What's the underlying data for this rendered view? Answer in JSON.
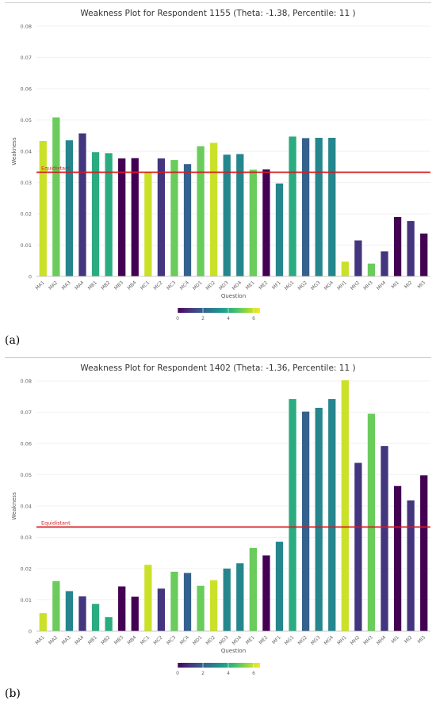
{
  "chart_data": [
    {
      "type": "bar",
      "panel_label": "(a)",
      "title": "Weakness Plot for Respondent 1155 (Theta: -1.38, Percentile: 11 )",
      "xlabel": "Question",
      "ylabel": "Weakness",
      "ylim": [
        0,
        0.08
      ],
      "yticks": [
        "0",
        "0.01",
        "0.02",
        "0.03",
        "0.04",
        "0.05",
        "0.06",
        "0.07",
        "0.08"
      ],
      "grid": true,
      "reference_line": {
        "label": "Equidistant",
        "value": 0.0333,
        "color": "#d7191c"
      },
      "colorbar": {
        "ticks": [
          "0",
          "2",
          "4",
          "6"
        ],
        "range": [
          0,
          6.5
        ]
      },
      "categories": [
        "MA1",
        "MA2",
        "MA3",
        "MA4",
        "MB1",
        "MB2",
        "MB3",
        "MB4",
        "MC1",
        "MC2",
        "MC3",
        "MC4",
        "MD1",
        "MD2",
        "MD3",
        "MD4",
        "ME1",
        "ME2",
        "MF1",
        "MG1",
        "MG2",
        "MG3",
        "MG4",
        "MH1",
        "MH2",
        "MH3",
        "MH4",
        "MI1",
        "MI2",
        "MI3"
      ],
      "values": [
        0.0433,
        0.0508,
        0.0435,
        0.0457,
        0.0397,
        0.0394,
        0.0377,
        0.0378,
        0.0332,
        0.0377,
        0.0372,
        0.0359,
        0.0416,
        0.0427,
        0.0389,
        0.0391,
        0.0341,
        0.0342,
        0.0297,
        0.0447,
        0.0442,
        0.0443,
        0.0443,
        0.0047,
        0.0115,
        0.0041,
        0.008,
        0.019,
        0.0177,
        0.0137
      ],
      "color_values": [
        6,
        5,
        3,
        1,
        4,
        4,
        0,
        0,
        6,
        1,
        5,
        2,
        5,
        6,
        3,
        3,
        5,
        0,
        3,
        4,
        2,
        3,
        3,
        6,
        1,
        5,
        1,
        0,
        1,
        0
      ]
    },
    {
      "type": "bar",
      "panel_label": "(b)",
      "title": "Weakness Plot for Respondent 1402 (Theta: -1.36, Percentile: 11 )",
      "xlabel": "Question",
      "ylabel": "Weakness",
      "ylim": [
        0,
        0.08
      ],
      "yticks": [
        "0",
        "0.01",
        "0.02",
        "0.03",
        "0.04",
        "0.05",
        "0.06",
        "0.07",
        "0.08"
      ],
      "grid": true,
      "reference_line": {
        "label": "Equidistant",
        "value": 0.0333,
        "color": "#d7191c"
      },
      "colorbar": {
        "ticks": [
          "0",
          "2",
          "4",
          "6"
        ],
        "range": [
          0,
          6.5
        ]
      },
      "categories": [
        "MA1",
        "MA2",
        "MA3",
        "MA4",
        "MB1",
        "MB2",
        "MB3",
        "MB4",
        "MC1",
        "MC2",
        "MC3",
        "MC4",
        "MD1",
        "MD2",
        "MD3",
        "MD4",
        "ME1",
        "ME2",
        "MF1",
        "MG1",
        "MG2",
        "MG3",
        "MG4",
        "MH1",
        "MH2",
        "MH3",
        "MH4",
        "MI1",
        "MI2",
        "MI3"
      ],
      "values": [
        0.0058,
        0.016,
        0.0128,
        0.0111,
        0.0087,
        0.0045,
        0.0143,
        0.011,
        0.0212,
        0.0136,
        0.019,
        0.0186,
        0.0145,
        0.0163,
        0.02,
        0.0217,
        0.0266,
        0.0242,
        0.0286,
        0.0742,
        0.0702,
        0.0714,
        0.0742,
        0.0802,
        0.0538,
        0.0695,
        0.0592,
        0.0464,
        0.0418,
        0.0498
      ],
      "color_values": [
        6,
        5,
        3,
        1,
        4,
        4,
        0,
        0,
        6,
        1,
        5,
        2,
        5,
        6,
        3,
        3,
        5,
        0,
        3,
        4,
        2,
        3,
        3,
        6,
        1,
        5,
        1,
        0,
        1,
        0
      ]
    }
  ]
}
